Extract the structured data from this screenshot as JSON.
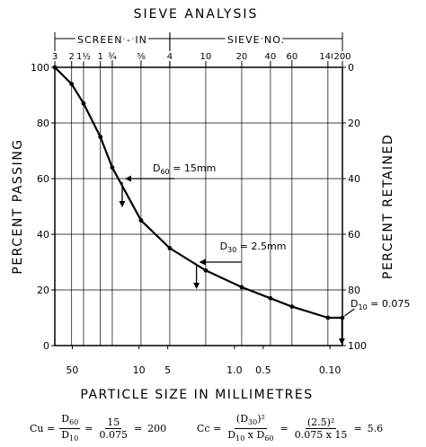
{
  "chart_data": {
    "type": "line",
    "title": "SIEVE ANALYSIS",
    "xlabel": "PARTICLE SIZE IN MILLIMETRES",
    "ylabel": "PERCENT PASSING",
    "y2label": "PERCENT RETAINED",
    "x_scale": "log",
    "x_reversed": true,
    "xlim": [
      76.2,
      0.074
    ],
    "ylim": [
      0,
      100
    ],
    "y_ticks": [
      "0",
      "20",
      "40",
      "60",
      "80",
      "100"
    ],
    "y2_ticks": [
      "100",
      "80",
      "60",
      "40",
      "20",
      "0"
    ],
    "x_tick_labels": [
      {
        "value": 50,
        "label": "50"
      },
      {
        "value": 10,
        "label": "10"
      },
      {
        "value": 5,
        "label": "5"
      },
      {
        "value": 1.0,
        "label": "1.0"
      },
      {
        "value": 0.5,
        "label": "0.5"
      },
      {
        "value": 0.1,
        "label": "0.10"
      }
    ],
    "top_groups": [
      {
        "label": "SCREEN - IN",
        "from": 76.2,
        "to": 4.76
      },
      {
        "label": "SIEVE NO.",
        "from": 4.76,
        "to": 0.074
      }
    ],
    "top_ticks": [
      {
        "value": 76.2,
        "label": "3"
      },
      {
        "value": 50.8,
        "label": "2"
      },
      {
        "value": 38.1,
        "label": "1½"
      },
      {
        "value": 25.4,
        "label": "1"
      },
      {
        "value": 19.05,
        "label": "¾"
      },
      {
        "value": 9.525,
        "label": "⅜"
      },
      {
        "value": 4.76,
        "label": "4"
      },
      {
        "value": 2.0,
        "label": "10"
      },
      {
        "value": 0.84,
        "label": "20"
      },
      {
        "value": 0.42,
        "label": "40"
      },
      {
        "value": 0.25,
        "label": "60"
      },
      {
        "value": 0.105,
        "label": "140"
      },
      {
        "value": 0.074,
        "label": "200"
      }
    ],
    "series": [
      {
        "x": [
          76.2,
          50.8,
          38.1,
          25.4,
          19.05,
          9.525,
          4.76,
          2.0,
          0.84,
          0.42,
          0.25,
          0.105,
          0.074
        ],
        "y": [
          100,
          94,
          87,
          75,
          64,
          45,
          35,
          27,
          21,
          17,
          14,
          10,
          10
        ]
      }
    ],
    "annotations": [
      {
        "text": "D60 = 15mm",
        "x": 15,
        "y": 60
      },
      {
        "text": "D30 = 2.5mm",
        "x": 2.5,
        "y": 30
      },
      {
        "text": "D10 = 0.075",
        "x": 0.075,
        "y": 10
      }
    ],
    "formulas": {
      "cu": {
        "lhs": "Cu =",
        "f1_num": "D60",
        "f1_den": "D10",
        "eq1": "=",
        "f2_num": "15",
        "f2_den": "0.075",
        "eq2": "=",
        "result": "200"
      },
      "cc": {
        "lhs": "Cc =",
        "f1_num": "(D30)²",
        "f1_den": "D10 x D60",
        "eq1": "=",
        "f2_num": "(2.5)²",
        "f2_den": "0.075 x 15",
        "eq2": "=",
        "result": "5.6"
      }
    }
  }
}
